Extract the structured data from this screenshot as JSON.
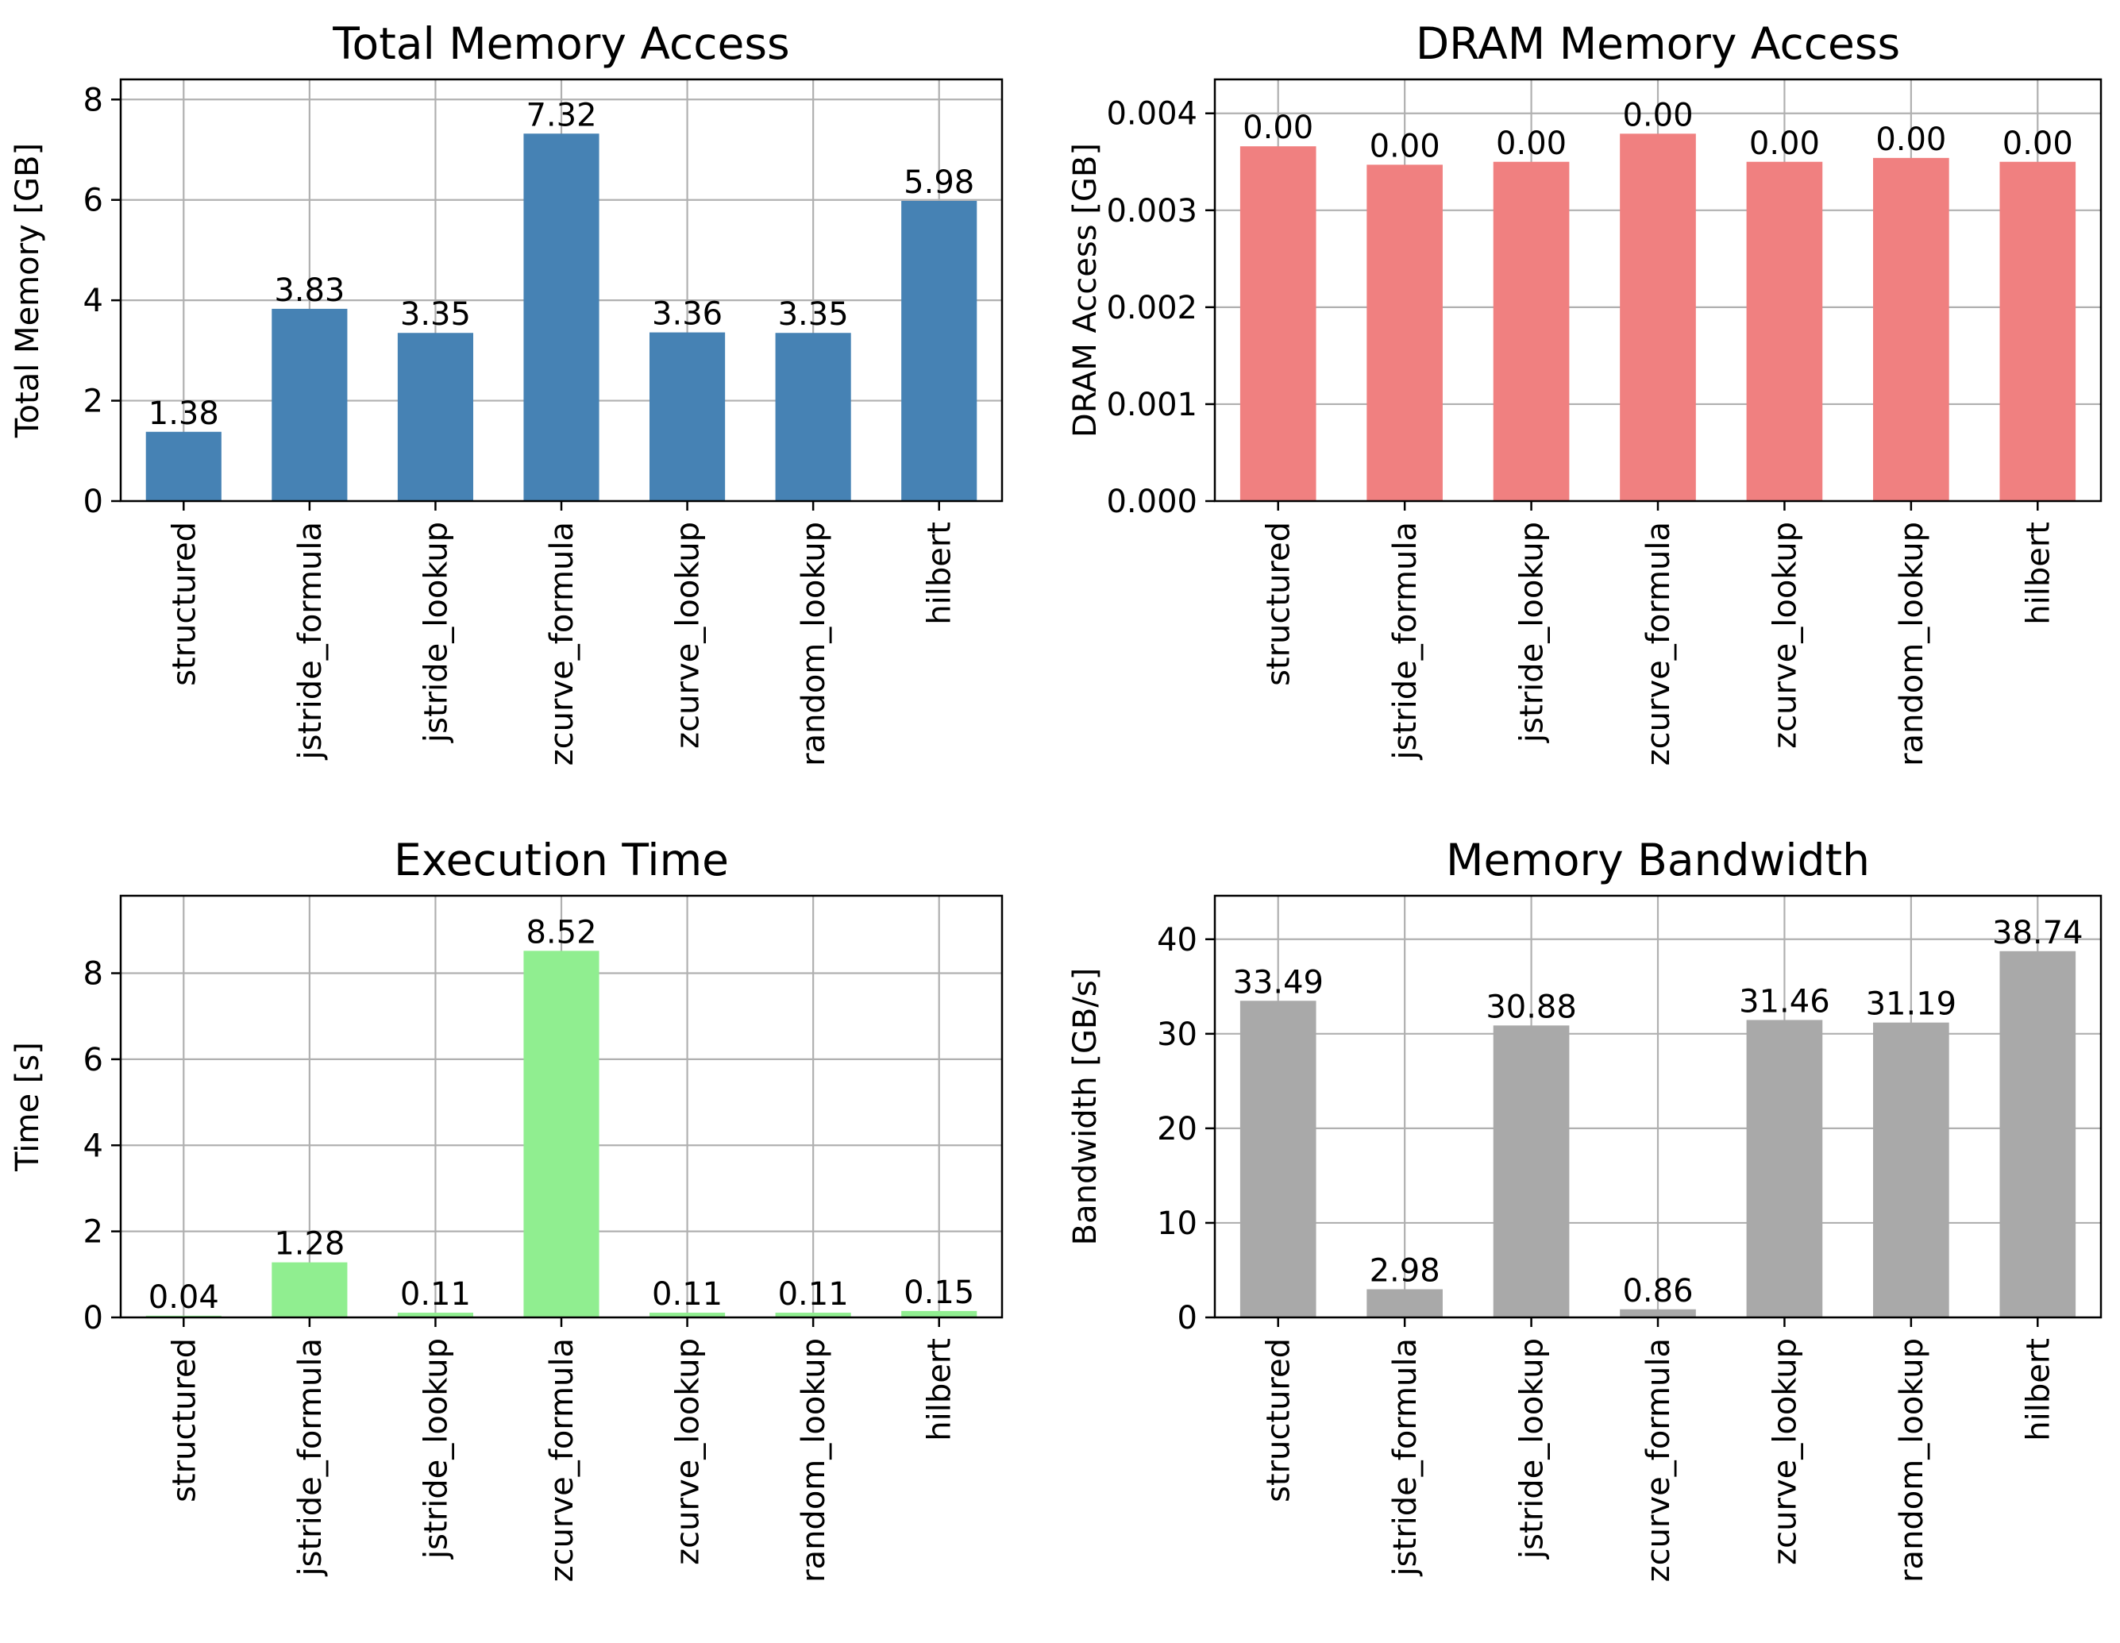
{
  "chart_data": [
    {
      "type": "bar",
      "title": "Total Memory Access",
      "ylabel": "Total Memory [GB]",
      "xlabel": "",
      "categories": [
        "structured",
        "jstride_formula",
        "jstride_lookup",
        "zcurve_formula",
        "zcurve_lookup",
        "random_lookup",
        "hilbert"
      ],
      "values": [
        1.38,
        3.83,
        3.35,
        7.32,
        3.36,
        3.35,
        5.98
      ],
      "data_labels": [
        "1.38",
        "3.83",
        "3.35",
        "7.32",
        "3.36",
        "3.35",
        "5.98"
      ],
      "ylim": [
        0,
        8.4
      ],
      "yticks": [
        0,
        2,
        4,
        6,
        8
      ],
      "ytick_labels": [
        "0",
        "2",
        "4",
        "6",
        "8"
      ],
      "color": "#4682b4",
      "grid": true
    },
    {
      "type": "bar",
      "title": "DRAM Memory Access",
      "ylabel": "DRAM Access [GB]",
      "xlabel": "",
      "categories": [
        "structured",
        "jstride_formula",
        "jstride_lookup",
        "zcurve_formula",
        "zcurve_lookup",
        "random_lookup",
        "hilbert"
      ],
      "values": [
        0.00366,
        0.00347,
        0.0035,
        0.00379,
        0.0035,
        0.00354,
        0.0035
      ],
      "data_labels": [
        "0.00",
        "0.00",
        "0.00",
        "0.00",
        "0.00",
        "0.00",
        "0.00"
      ],
      "ylim": [
        0,
        0.00435
      ],
      "yticks": [
        0,
        0.001,
        0.002,
        0.003,
        0.004
      ],
      "ytick_labels": [
        "0.000",
        "0.001",
        "0.002",
        "0.003",
        "0.004"
      ],
      "color": "#f08080",
      "grid": true
    },
    {
      "type": "bar",
      "title": "Execution Time",
      "ylabel": "Time [s]",
      "xlabel": "",
      "categories": [
        "structured",
        "jstride_formula",
        "jstride_lookup",
        "zcurve_formula",
        "zcurve_lookup",
        "random_lookup",
        "hilbert"
      ],
      "values": [
        0.04,
        1.28,
        0.11,
        8.52,
        0.11,
        0.11,
        0.15
      ],
      "data_labels": [
        "0.04",
        "1.28",
        "0.11",
        "8.52",
        "0.11",
        "0.11",
        "0.15"
      ],
      "ylim": [
        0,
        9.8
      ],
      "yticks": [
        0,
        2,
        4,
        6,
        8
      ],
      "ytick_labels": [
        "0",
        "2",
        "4",
        "6",
        "8"
      ],
      "color": "#90ee90",
      "grid": true
    },
    {
      "type": "bar",
      "title": "Memory Bandwidth",
      "ylabel": "Bandwidth [GB/s]",
      "xlabel": "",
      "categories": [
        "structured",
        "jstride_formula",
        "jstride_lookup",
        "zcurve_formula",
        "zcurve_lookup",
        "random_lookup",
        "hilbert"
      ],
      "values": [
        33.49,
        2.98,
        30.88,
        0.86,
        31.46,
        31.19,
        38.74
      ],
      "data_labels": [
        "33.49",
        "2.98",
        "30.88",
        "0.86",
        "31.46",
        "31.19",
        "38.74"
      ],
      "ylim": [
        0,
        44.6
      ],
      "yticks": [
        0,
        10,
        20,
        30,
        40
      ],
      "ytick_labels": [
        "0",
        "10",
        "20",
        "30",
        "40"
      ],
      "color": "#a9a9a9",
      "grid": true
    }
  ]
}
